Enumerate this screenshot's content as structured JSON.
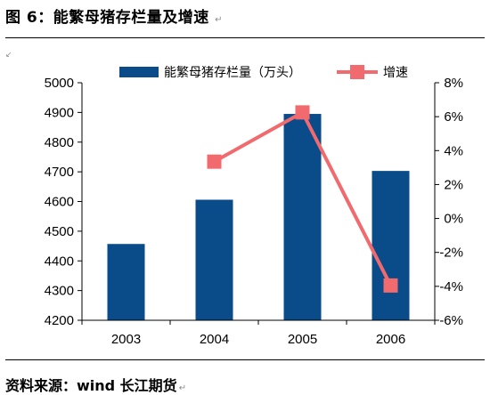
{
  "figure": {
    "title": "图 6：能繁母猪存栏量及增速",
    "para_mark": "↵",
    "source": "资料来源：wind   长江期货"
  },
  "colors": {
    "bar": "#0a4b8a",
    "line": "#f06a6e",
    "axis": "#000000"
  },
  "chart_data": {
    "type": "bar",
    "categories": [
      "2003",
      "2004",
      "2005",
      "2006"
    ],
    "series": [
      {
        "name": "能繁母猪存栏量（万头）",
        "type": "bar",
        "axis": "left",
        "values": [
          4457,
          4606,
          4895,
          4703
        ]
      },
      {
        "name": "增速",
        "type": "line",
        "axis": "right",
        "marker": "square",
        "values": [
          null,
          3.35,
          6.25,
          -3.95
        ]
      }
    ],
    "ylim": [
      4200,
      5000
    ],
    "yticks": [
      "4200",
      "4300",
      "4400",
      "4500",
      "4600",
      "4700",
      "4800",
      "4900",
      "5000"
    ],
    "y2lim": [
      -6,
      8
    ],
    "y2ticks": [
      "-6%",
      "-4%",
      "-2%",
      "0%",
      "2%",
      "4%",
      "6%",
      "8%"
    ],
    "grid": false,
    "legend_position": "top"
  }
}
